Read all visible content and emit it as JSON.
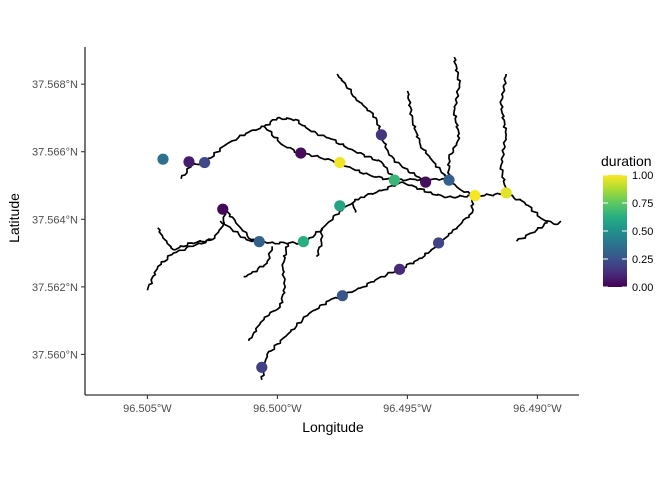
{
  "chart_data": {
    "type": "scatter",
    "xlabel": "Longitude",
    "ylabel": "Latitude",
    "xlim": [
      -96.5074,
      -96.4884
    ],
    "ylim": [
      37.5588,
      37.5691
    ],
    "x_ticks": [
      {
        "value": -96.505,
        "label": "96.505°W"
      },
      {
        "value": -96.5,
        "label": "96.500°W"
      },
      {
        "value": -96.495,
        "label": "96.495°W"
      },
      {
        "value": -96.49,
        "label": "96.490°W"
      }
    ],
    "y_ticks": [
      {
        "value": 37.56,
        "label": "37.560°N"
      },
      {
        "value": 37.562,
        "label": "37.562°N"
      },
      {
        "value": 37.564,
        "label": "37.564°N"
      },
      {
        "value": 37.566,
        "label": "37.566°N"
      },
      {
        "value": 37.568,
        "label": "37.568°N"
      }
    ],
    "grid": false,
    "legend": {
      "title": "duration",
      "position": "right",
      "colorscale": "viridis",
      "range": [
        0,
        1
      ],
      "ticks": [
        {
          "value": 1.0,
          "label": "1.00"
        },
        {
          "value": 0.75,
          "label": "0.75"
        },
        {
          "value": 0.5,
          "label": "0.50"
        },
        {
          "value": 0.25,
          "label": "0.25"
        },
        {
          "value": 0.0,
          "label": "0.00"
        }
      ]
    },
    "points": [
      {
        "x": -96.5044,
        "y": 37.56578,
        "duration": 0.37
      },
      {
        "x": -96.5034,
        "y": 37.5657,
        "duration": 0.08
      },
      {
        "x": -96.5028,
        "y": 37.56568,
        "duration": 0.22
      },
      {
        "x": -96.4991,
        "y": 37.56596,
        "duration": 0.03
      },
      {
        "x": -96.4976,
        "y": 37.56568,
        "duration": 0.98
      },
      {
        "x": -96.496,
        "y": 37.5665,
        "duration": 0.15
      },
      {
        "x": -96.4955,
        "y": 37.56516,
        "duration": 0.67
      },
      {
        "x": -96.4943,
        "y": 37.5651,
        "duration": 0.04
      },
      {
        "x": -96.4934,
        "y": 37.56516,
        "duration": 0.3
      },
      {
        "x": -96.4924,
        "y": 37.5647,
        "duration": 0.99
      },
      {
        "x": -96.4912,
        "y": 37.56478,
        "duration": 0.96
      },
      {
        "x": -96.5021,
        "y": 37.5643,
        "duration": 0.02
      },
      {
        "x": -96.5007,
        "y": 37.56334,
        "duration": 0.31
      },
      {
        "x": -96.499,
        "y": 37.56334,
        "duration": 0.63
      },
      {
        "x": -96.4976,
        "y": 37.5644,
        "duration": 0.58
      },
      {
        "x": -96.4938,
        "y": 37.5633,
        "duration": 0.2
      },
      {
        "x": -96.4953,
        "y": 37.56252,
        "duration": 0.12
      },
      {
        "x": -96.4975,
        "y": 37.56174,
        "duration": 0.27
      },
      {
        "x": -96.5006,
        "y": 37.55962,
        "duration": 0.19
      }
    ],
    "streams": [
      [
        [
          -96.5046,
          37.56375
        ],
        [
          -96.5044,
          37.56345
        ],
        [
          -96.504,
          37.5631
        ],
        [
          -96.5033,
          37.5633
        ],
        [
          -96.5025,
          37.5634
        ],
        [
          -96.5021,
          37.5638
        ],
        [
          -96.502,
          37.5643
        ],
        [
          -96.5016,
          37.5639
        ],
        [
          -96.501,
          37.5634
        ],
        [
          -96.5004,
          37.5633
        ],
        [
          -96.499,
          37.5633
        ],
        [
          -96.4983,
          37.5637
        ],
        [
          -96.4976,
          37.56425
        ],
        [
          -96.4968,
          37.56465
        ],
        [
          -96.496,
          37.56485
        ],
        [
          -96.4952,
          37.5651
        ],
        [
          -96.4942,
          37.5648
        ],
        [
          -96.4935,
          37.56465
        ],
        [
          -96.4925,
          37.5647
        ],
        [
          -96.4912,
          37.56475
        ],
        [
          -96.4905,
          37.5645
        ],
        [
          -96.4898,
          37.564
        ],
        [
          -96.4893,
          37.56385
        ],
        [
          -96.4891,
          37.56395
        ]
      ],
      [
        [
          -96.505,
          37.5619
        ],
        [
          -96.5046,
          37.5626
        ],
        [
          -96.504,
          37.563
        ],
        [
          -96.5033,
          37.5632
        ],
        [
          -96.5025,
          37.5634
        ]
      ],
      [
        [
          -96.5037,
          37.5652
        ],
        [
          -96.5033,
          37.5656
        ],
        [
          -96.5028,
          37.56568
        ],
        [
          -96.502,
          37.5662
        ],
        [
          -96.5012,
          37.56655
        ],
        [
          -96.5005,
          37.56675
        ],
        [
          -96.4998,
          37.5662
        ],
        [
          -96.4992,
          37.56598
        ],
        [
          -96.4984,
          37.56584
        ],
        [
          -96.4976,
          37.56568
        ],
        [
          -96.497,
          37.56545
        ],
        [
          -96.4962,
          37.56525
        ],
        [
          -96.4955,
          37.56516
        ],
        [
          -96.4947,
          37.56518
        ],
        [
          -96.4943,
          37.5651
        ],
        [
          -96.4939,
          37.5652
        ],
        [
          -96.4934,
          37.56516
        ],
        [
          -96.493,
          37.5649
        ],
        [
          -96.4924,
          37.5647
        ]
      ],
      [
        [
          -96.5005,
          37.56675
        ],
        [
          -96.5,
          37.567
        ],
        [
          -96.4993,
          37.56695
        ],
        [
          -96.4987,
          37.5666
        ],
        [
          -96.498,
          37.5664
        ],
        [
          -96.497,
          37.566
        ],
        [
          -96.496,
          37.5657
        ],
        [
          -96.4955,
          37.56516
        ]
      ],
      [
        [
          -96.4977,
          37.5683
        ],
        [
          -96.497,
          37.5676
        ],
        [
          -96.4962,
          37.567
        ],
        [
          -96.496,
          37.5665
        ],
        [
          -96.4957,
          37.5659
        ],
        [
          -96.4952,
          37.56555
        ],
        [
          -96.4947,
          37.5653
        ],
        [
          -96.4943,
          37.5651
        ]
      ],
      [
        [
          -96.495,
          37.5678
        ],
        [
          -96.4948,
          37.5669
        ],
        [
          -96.4945,
          37.5662
        ],
        [
          -96.494,
          37.5657
        ],
        [
          -96.4934,
          37.56516
        ]
      ],
      [
        [
          -96.4932,
          37.5688
        ],
        [
          -96.493,
          37.568
        ],
        [
          -96.4932,
          37.5672
        ],
        [
          -96.493,
          37.5664
        ],
        [
          -96.4934,
          37.5658
        ],
        [
          -96.4934,
          37.56516
        ]
      ],
      [
        [
          -96.4912,
          37.5683
        ],
        [
          -96.4914,
          37.5674
        ],
        [
          -96.4912,
          37.5665
        ],
        [
          -96.4914,
          37.5656
        ],
        [
          -96.4912,
          37.56478
        ]
      ],
      [
        [
          -96.4896,
          37.5639
        ],
        [
          -96.4902,
          37.5636
        ],
        [
          -96.4908,
          37.56335
        ]
      ],
      [
        [
          -96.5006,
          37.55925
        ],
        [
          -96.5004,
          37.56
        ],
        [
          -96.4996,
          37.5606
        ],
        [
          -96.4988,
          37.5612
        ],
        [
          -96.498,
          37.5616
        ],
        [
          -96.4975,
          37.56174
        ],
        [
          -96.4967,
          37.562
        ],
        [
          -96.496,
          37.5623
        ],
        [
          -96.4953,
          37.56252
        ],
        [
          -96.4946,
          37.5628
        ],
        [
          -96.4942,
          37.563
        ],
        [
          -96.4938,
          37.5633
        ],
        [
          -96.4933,
          37.5636
        ],
        [
          -96.4929,
          37.5639
        ],
        [
          -96.4925,
          37.5642
        ],
        [
          -96.4925,
          37.5647
        ]
      ],
      [
        [
          -96.5022,
          37.56395
        ],
        [
          -96.5012,
          37.5634
        ],
        [
          -96.5007,
          37.56334
        ]
      ],
      [
        [
          -96.5002,
          37.5632
        ],
        [
          -96.5004,
          37.5627
        ],
        [
          -96.501,
          37.5624
        ],
        [
          -96.5013,
          37.5623
        ]
      ],
      [
        [
          -96.4996,
          37.5633
        ],
        [
          -96.4998,
          37.5626
        ],
        [
          -96.4997,
          37.562
        ],
        [
          -96.4999,
          37.5614
        ],
        [
          -96.5005,
          37.5611
        ],
        [
          -96.5009,
          37.56065
        ],
        [
          -96.5011,
          37.5604
        ]
      ],
      [
        [
          -96.4983,
          37.56375
        ],
        [
          -96.4983,
          37.5633
        ],
        [
          -96.4985,
          37.5629
        ]
      ],
      [
        [
          -96.4971,
          37.5645
        ],
        [
          -96.497,
          37.5642
        ]
      ]
    ]
  }
}
